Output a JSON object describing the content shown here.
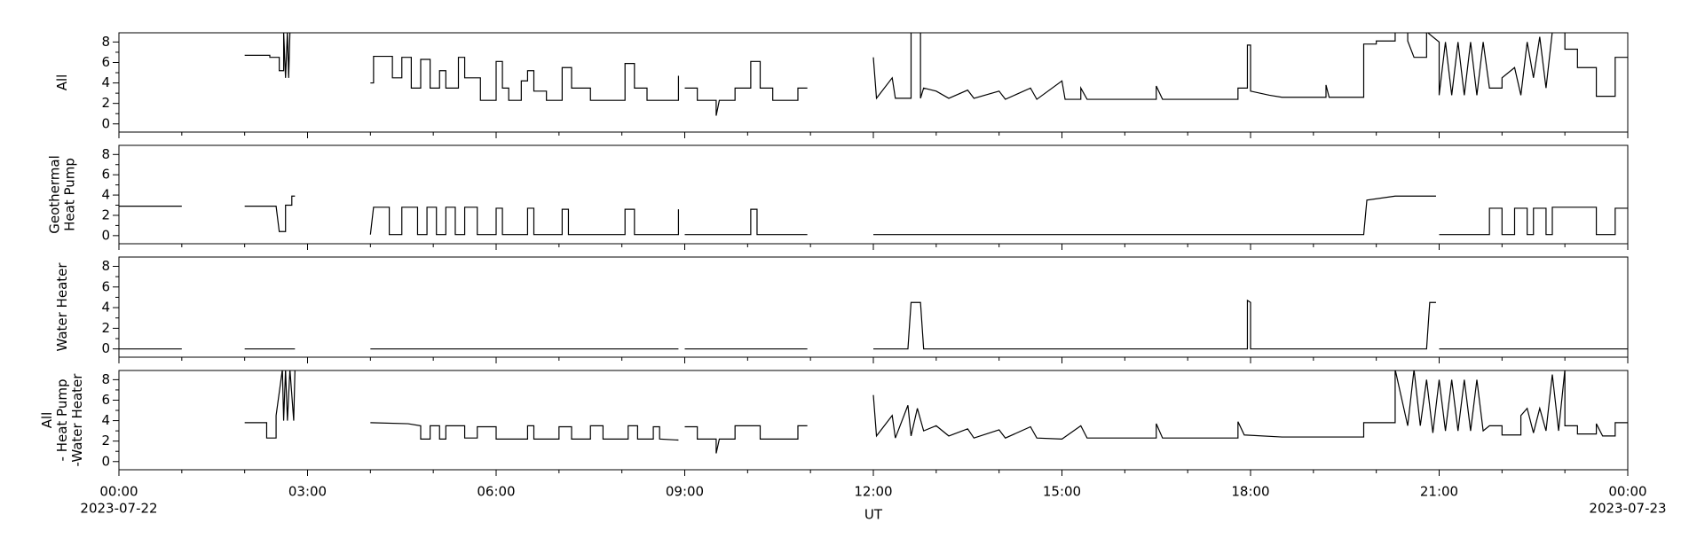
{
  "chart_data": {
    "type": "line",
    "xlabel": "UT",
    "date_labels": [
      "2023-07-22",
      "2023-07-23"
    ],
    "xlim": [
      0,
      24
    ],
    "xticks": [
      {
        "value": 0,
        "label": "00:00"
      },
      {
        "value": 3,
        "label": "03:00"
      },
      {
        "value": 6,
        "label": "06:00"
      },
      {
        "value": 9,
        "label": "09:00"
      },
      {
        "value": 12,
        "label": "12:00"
      },
      {
        "value": 15,
        "label": "15:00"
      },
      {
        "value": 18,
        "label": "18:00"
      },
      {
        "value": 21,
        "label": "21:00"
      },
      {
        "value": 24,
        "label": "00:00"
      }
    ],
    "xminor": [
      1,
      2,
      4,
      5,
      7,
      8,
      10,
      11,
      13,
      14,
      16,
      17,
      19,
      20,
      22,
      23
    ],
    "ylim": [
      -0.8,
      8.9
    ],
    "yticks": [
      0,
      2,
      4,
      6,
      8
    ],
    "yminor": [
      1,
      3,
      5,
      7
    ],
    "color": "#000000",
    "panels": [
      {
        "ylabel": [
          "All"
        ],
        "series": [
          {
            "x": [
              2.0,
              2.4,
              2.4,
              2.55,
              2.55,
              2.62,
              2.62,
              2.65,
              2.68,
              2.7,
              2.72,
              2.8,
              null,
              4.0,
              4.05,
              4.05,
              4.35,
              4.35,
              4.5,
              4.5,
              4.65,
              4.65,
              4.8,
              4.8,
              4.95,
              4.95,
              5.1,
              5.1,
              5.2,
              5.2,
              5.4,
              5.4,
              5.5,
              5.5,
              5.75,
              5.75,
              6.0,
              6.0,
              6.1,
              6.1,
              6.2,
              6.2,
              6.4,
              6.4,
              6.5,
              6.5,
              6.6,
              6.6,
              6.8,
              6.8,
              7.05,
              7.05,
              7.2,
              7.2,
              7.5,
              7.5,
              8.05,
              8.05,
              8.2,
              8.2,
              8.4,
              8.4,
              8.9,
              8.9,
              null,
              9.0,
              9.2,
              9.2,
              9.5,
              9.5,
              9.55,
              9.8,
              9.8,
              10.05,
              10.05,
              10.2,
              10.2,
              10.4,
              10.4,
              10.8,
              10.8,
              10.95,
              null,
              12.0,
              12.05,
              12.3,
              12.35,
              12.6,
              12.6,
              12.75,
              12.75,
              12.8,
              13.0,
              13.2,
              13.5,
              13.6,
              14.0,
              14.1,
              14.5,
              14.6,
              15.0,
              15.05,
              15.3,
              15.3,
              15.4,
              16.5,
              16.5,
              16.6,
              17.8,
              17.8,
              17.95,
              17.95,
              18.0,
              18.0,
              18.3,
              18.5,
              19.2,
              19.2,
              19.25,
              19.8,
              19.8,
              20.0,
              20.0,
              20.3,
              20.3,
              20.5,
              20.5,
              20.6,
              20.8,
              20.8,
              21.0,
              21.0,
              21.1,
              21.2,
              21.3,
              21.4,
              21.5,
              21.6,
              21.7,
              21.8,
              22.0,
              22.0,
              22.2,
              22.3,
              22.4,
              22.5,
              22.6,
              22.7,
              22.8,
              23.0,
              23.0,
              23.2,
              23.2,
              23.5,
              23.5,
              23.8,
              23.8,
              24.0
            ],
            "values": [
              6.7,
              6.7,
              6.5,
              6.5,
              5.2,
              5.2,
              9,
              4.5,
              9,
              4.5,
              9,
              9,
              null,
              4,
              4,
              6.6,
              6.6,
              4.5,
              4.5,
              6.5,
              6.5,
              3.5,
              3.5,
              6.3,
              6.3,
              3.5,
              3.5,
              5.2,
              5.2,
              3.5,
              3.5,
              6.5,
              6.5,
              4.5,
              4.5,
              2.3,
              2.3,
              6.1,
              6.1,
              3.5,
              3.5,
              2.3,
              2.3,
              4.2,
              4.2,
              5.2,
              5.2,
              3.2,
              3.2,
              2.3,
              2.3,
              5.5,
              5.5,
              3.5,
              3.5,
              2.3,
              2.3,
              5.9,
              5.9,
              3.5,
              3.5,
              2.3,
              2.3,
              4.7,
              null,
              3.5,
              3.5,
              2.3,
              2.3,
              0.8,
              2.3,
              2.3,
              3.5,
              3.5,
              6.1,
              6.1,
              3.5,
              3.5,
              2.3,
              2.3,
              3.5,
              3.5,
              null,
              6.5,
              2.5,
              4.5,
              2.5,
              2.5,
              9,
              9,
              2.5,
              3.5,
              3.2,
              2.5,
              3.3,
              2.5,
              3.2,
              2.4,
              3.5,
              2.4,
              4.2,
              2.4,
              2.4,
              3.5,
              2.4,
              2.4,
              3.7,
              2.4,
              2.4,
              3.5,
              3.5,
              7.7,
              7.7,
              3.2,
              2.8,
              2.6,
              2.6,
              3.8,
              2.6,
              2.6,
              7.8,
              7.8,
              8.1,
              8.1,
              9,
              9,
              8.1,
              6.5,
              6.5,
              9,
              8,
              2.8,
              8,
              2.8,
              8,
              2.8,
              8,
              2.8,
              8,
              3.5,
              3.5,
              4.5,
              5.5,
              2.8,
              8,
              4.5,
              8.5,
              3.5,
              9,
              9,
              7.3,
              7.3,
              5.5,
              5.5,
              2.7,
              2.7,
              6.5,
              6.5
            ]
          }
        ]
      },
      {
        "ylabel": [
          "Geothermal",
          "Heat Pump"
        ],
        "series": [
          {
            "x": [
              0,
              1.0,
              null,
              2.0,
              2.5,
              2.55,
              2.65,
              2.65,
              2.75,
              2.75,
              2.8,
              null,
              4.0,
              4.05,
              4.3,
              4.3,
              4.5,
              4.5,
              4.75,
              4.75,
              4.9,
              4.9,
              5.05,
              5.05,
              5.2,
              5.2,
              5.35,
              5.35,
              5.5,
              5.5,
              5.7,
              5.7,
              6.0,
              6.0,
              6.1,
              6.1,
              6.5,
              6.5,
              6.6,
              6.6,
              7.05,
              7.05,
              7.15,
              7.15,
              8.05,
              8.05,
              8.2,
              8.2,
              8.9,
              8.9,
              null,
              9.0,
              10.05,
              10.05,
              10.15,
              10.15,
              10.95,
              null,
              12.0,
              19.8,
              19.85,
              20.3,
              20.95,
              null,
              21.0,
              21.8,
              21.8,
              22.0,
              22.0,
              22.2,
              22.2,
              22.4,
              22.4,
              22.5,
              22.5,
              22.7,
              22.7,
              22.8,
              22.8,
              23.5,
              23.5,
              23.8,
              23.8,
              24.0
            ],
            "values": [
              2.9,
              2.9,
              null,
              2.9,
              2.9,
              0.4,
              0.4,
              3.0,
              3.0,
              3.9,
              3.9,
              null,
              0.1,
              2.8,
              2.8,
              0.1,
              0.1,
              2.8,
              2.8,
              0.1,
              0.1,
              2.8,
              2.8,
              0.1,
              0.1,
              2.8,
              2.8,
              0.1,
              0.1,
              2.8,
              2.8,
              0.1,
              0.1,
              2.7,
              2.7,
              0.1,
              0.1,
              2.7,
              2.7,
              0.1,
              0.1,
              2.6,
              2.6,
              0.1,
              0.1,
              2.6,
              2.6,
              0.1,
              0.1,
              2.6,
              null,
              0.1,
              0.1,
              2.6,
              2.6,
              0.1,
              0.1,
              null,
              0.1,
              0.1,
              3.5,
              3.9,
              3.9,
              null,
              0.1,
              0.1,
              2.7,
              2.7,
              0.1,
              0.1,
              2.7,
              2.7,
              0.1,
              0.1,
              2.7,
              2.7,
              0.1,
              0.1,
              2.8,
              2.8,
              0.1,
              0.1,
              2.7,
              2.7
            ]
          }
        ]
      },
      {
        "ylabel": [
          "Water Heater"
        ],
        "series": [
          {
            "x": [
              0,
              1.0,
              null,
              2.0,
              2.8,
              null,
              4.0,
              8.9,
              null,
              9.0,
              10.95,
              null,
              12.0,
              12.55,
              12.6,
              12.75,
              12.8,
              17.95,
              17.95,
              18.0,
              18.0,
              20.8,
              20.85,
              20.95,
              null,
              21.0,
              24.0
            ],
            "values": [
              0,
              0,
              null,
              0,
              0,
              null,
              0,
              0,
              null,
              0,
              0,
              null,
              0,
              0,
              4.5,
              4.5,
              0,
              0,
              4.7,
              4.5,
              0,
              0,
              4.5,
              4.5,
              null,
              0,
              0
            ]
          }
        ]
      },
      {
        "ylabel": [
          "All",
          "- Heat Pump",
          "-Water Heater"
        ],
        "series": [
          {
            "x": [
              2.0,
              2.35,
              2.35,
              2.5,
              2.5,
              2.6,
              2.62,
              2.65,
              2.68,
              2.72,
              2.78,
              2.8,
              null,
              4.0,
              4.6,
              4.8,
              4.8,
              4.95,
              4.95,
              5.1,
              5.1,
              5.2,
              5.2,
              5.5,
              5.5,
              5.7,
              5.7,
              6.0,
              6.0,
              6.5,
              6.5,
              6.6,
              6.6,
              7.0,
              7.0,
              7.2,
              7.2,
              7.5,
              7.5,
              7.7,
              7.7,
              8.1,
              8.1,
              8.25,
              8.25,
              8.5,
              8.5,
              8.6,
              8.6,
              8.9,
              null,
              9.0,
              9.2,
              9.2,
              9.5,
              9.5,
              9.55,
              9.8,
              9.8,
              10.2,
              10.2,
              10.8,
              10.8,
              10.95,
              null,
              12.0,
              12.05,
              12.3,
              12.35,
              12.55,
              12.6,
              12.7,
              12.8,
              13.0,
              13.2,
              13.5,
              13.6,
              14.0,
              14.1,
              14.5,
              14.6,
              15.0,
              15.3,
              15.4,
              16.5,
              16.5,
              16.6,
              17.8,
              17.8,
              17.9,
              18.5,
              19.8,
              19.8,
              20.3,
              20.3,
              20.5,
              20.6,
              20.7,
              20.8,
              20.9,
              21.0,
              21.1,
              21.2,
              21.3,
              21.4,
              21.5,
              21.6,
              21.7,
              21.8,
              22.0,
              22.0,
              22.3,
              22.3,
              22.4,
              22.5,
              22.6,
              22.7,
              22.8,
              22.9,
              23.0,
              23.0,
              23.2,
              23.2,
              23.5,
              23.5,
              23.6,
              23.8,
              23.8,
              24.0
            ],
            "values": [
              3.8,
              3.8,
              2.3,
              2.3,
              4.5,
              9,
              4,
              9,
              4,
              9,
              4,
              9,
              null,
              3.8,
              3.7,
              3.5,
              2.2,
              2.2,
              3.5,
              3.5,
              2.2,
              2.2,
              3.5,
              3.5,
              2.3,
              2.3,
              3.4,
              3.4,
              2.2,
              2.2,
              3.5,
              3.5,
              2.2,
              2.2,
              3.4,
              3.4,
              2.2,
              2.2,
              3.5,
              3.5,
              2.2,
              2.2,
              3.5,
              3.5,
              2.2,
              2.2,
              3.4,
              3.4,
              2.2,
              2.1,
              null,
              3.4,
              3.4,
              2.2,
              2.2,
              0.8,
              2.2,
              2.2,
              3.5,
              3.5,
              2.2,
              2.2,
              3.5,
              3.5,
              null,
              6.5,
              2.5,
              4.5,
              2.3,
              5.5,
              2.5,
              5.2,
              3.0,
              3.5,
              2.5,
              3.2,
              2.3,
              3.1,
              2.3,
              3.4,
              2.3,
              2.2,
              3.5,
              2.3,
              2.3,
              3.7,
              2.3,
              2.3,
              3.9,
              2.6,
              2.4,
              2.4,
              3.8,
              3.8,
              9,
              3.5,
              9,
              3.5,
              8,
              2.8,
              8,
              3,
              8,
              3,
              8,
              3,
              8,
              3,
              3.5,
              3.5,
              2.6,
              2.6,
              4.5,
              5.2,
              2.8,
              5.2,
              3,
              8.5,
              3,
              9,
              3.5,
              3.5,
              2.7,
              2.7,
              3.7,
              2.5,
              2.5,
              3.8,
              3.8
            ]
          }
        ]
      }
    ]
  }
}
